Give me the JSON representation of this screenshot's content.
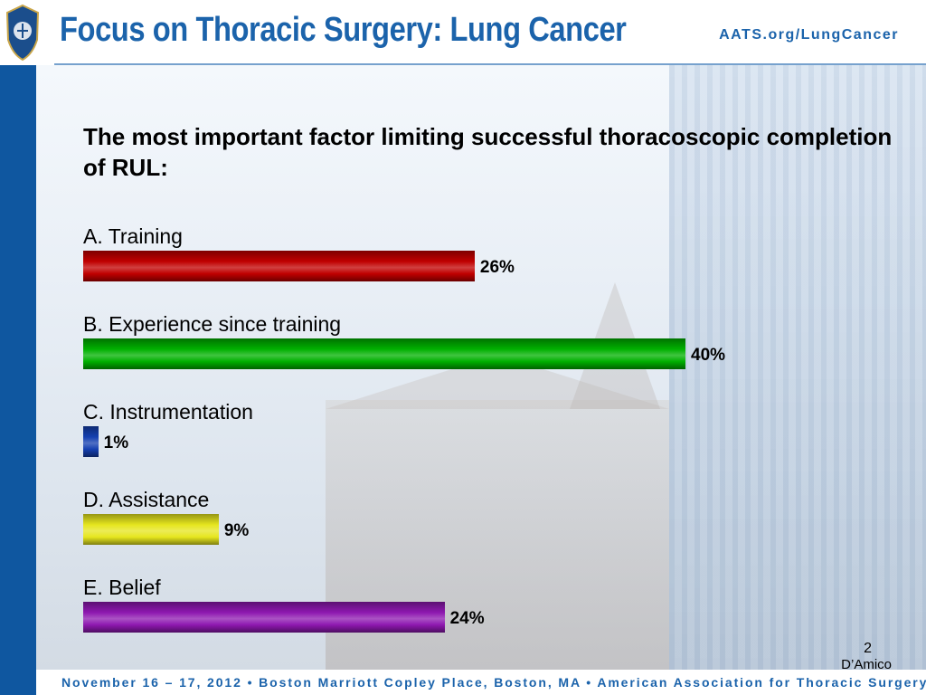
{
  "header": {
    "title": "Focus on Thoracic Surgery: Lung Cancer",
    "url": "AATS.org/LungCancer"
  },
  "question": "The most important factor limiting successful thoracoscopic completion of RUL:",
  "chart_data": {
    "type": "bar",
    "orientation": "horizontal",
    "categories": [
      "A.  Training",
      "B.  Experience since training",
      "C.  Instrumentation",
      "D.  Assistance",
      "E.  Belief"
    ],
    "values": [
      26,
      40,
      1,
      9,
      24
    ],
    "value_labels": [
      "26%",
      "40%",
      "1%",
      "9%",
      "24%"
    ],
    "colors": [
      "#c00000",
      "#00b000",
      "#1540b0",
      "#e6e61e",
      "#8e18b0"
    ],
    "xlim": [
      0,
      40
    ],
    "grid": false
  },
  "slide_number": "2",
  "author": "D’Amico",
  "footer": "November 16 – 17, 2012  •  Boston Marriott Copley Place, Boston, MA  •  American Association for Thoracic Surgery"
}
